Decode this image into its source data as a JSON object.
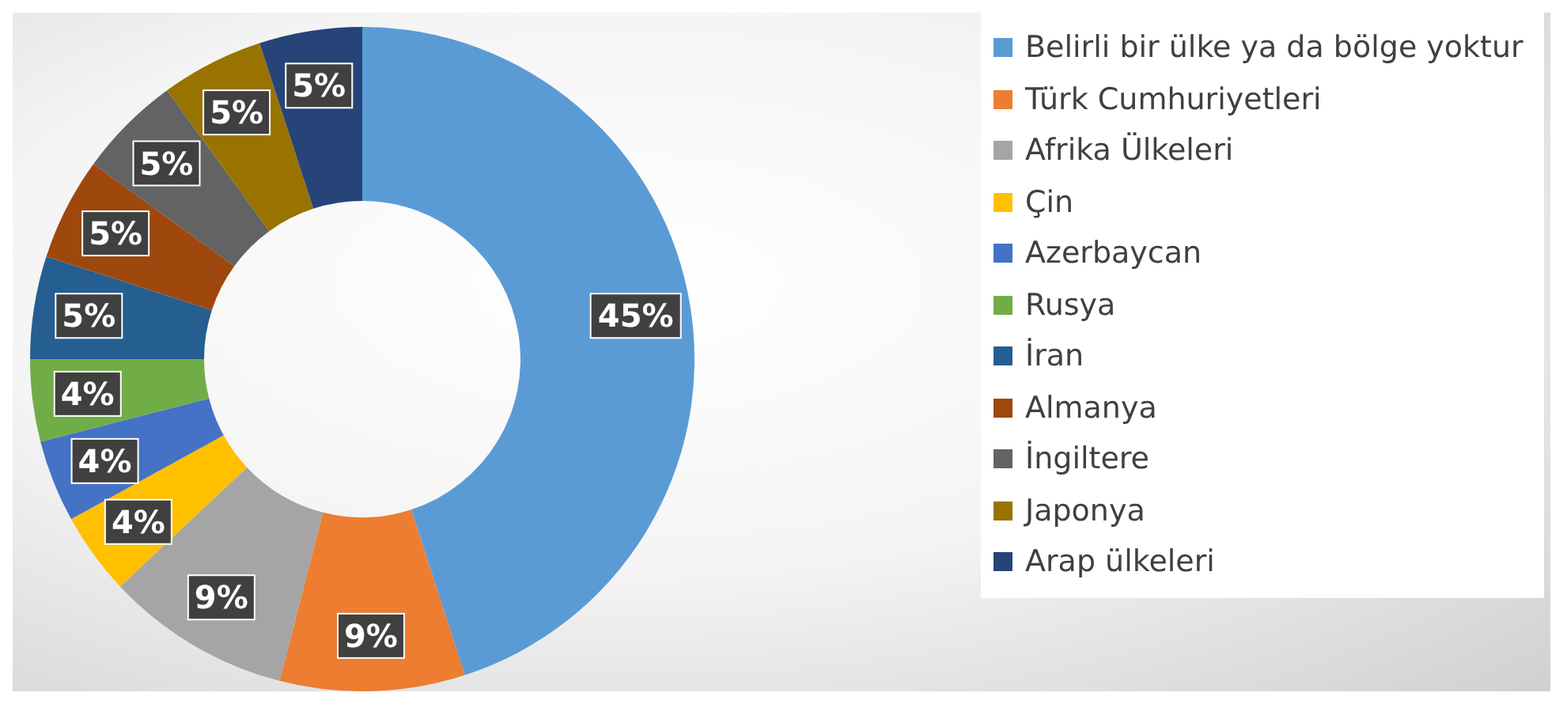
{
  "chart_data": {
    "type": "donut",
    "categories": [
      "Belirli bir ülke ya da bölge yoktur",
      "Türk Cumhuriyetleri",
      "Afrika Ülkeleri",
      "Çin",
      "Azerbaycan",
      "Rusya",
      "İran",
      "Almanya",
      "İngiltere",
      "Japonya",
      "Arap ülkeleri"
    ],
    "values": [
      45,
      9,
      9,
      4,
      4,
      4,
      5,
      5,
      5,
      5,
      5
    ],
    "value_labels": [
      "45%",
      "9%",
      "9%",
      "4%",
      "4%",
      "4%",
      "5%",
      "5%",
      "5%",
      "5%",
      "5%"
    ],
    "colors": [
      "#5b9bd5",
      "#ed7d31",
      "#a5a5a5",
      "#ffc000",
      "#4472c4",
      "#70ad47",
      "#255e91",
      "#9e480e",
      "#636363",
      "#997300",
      "#264478"
    ],
    "legend": "right"
  }
}
